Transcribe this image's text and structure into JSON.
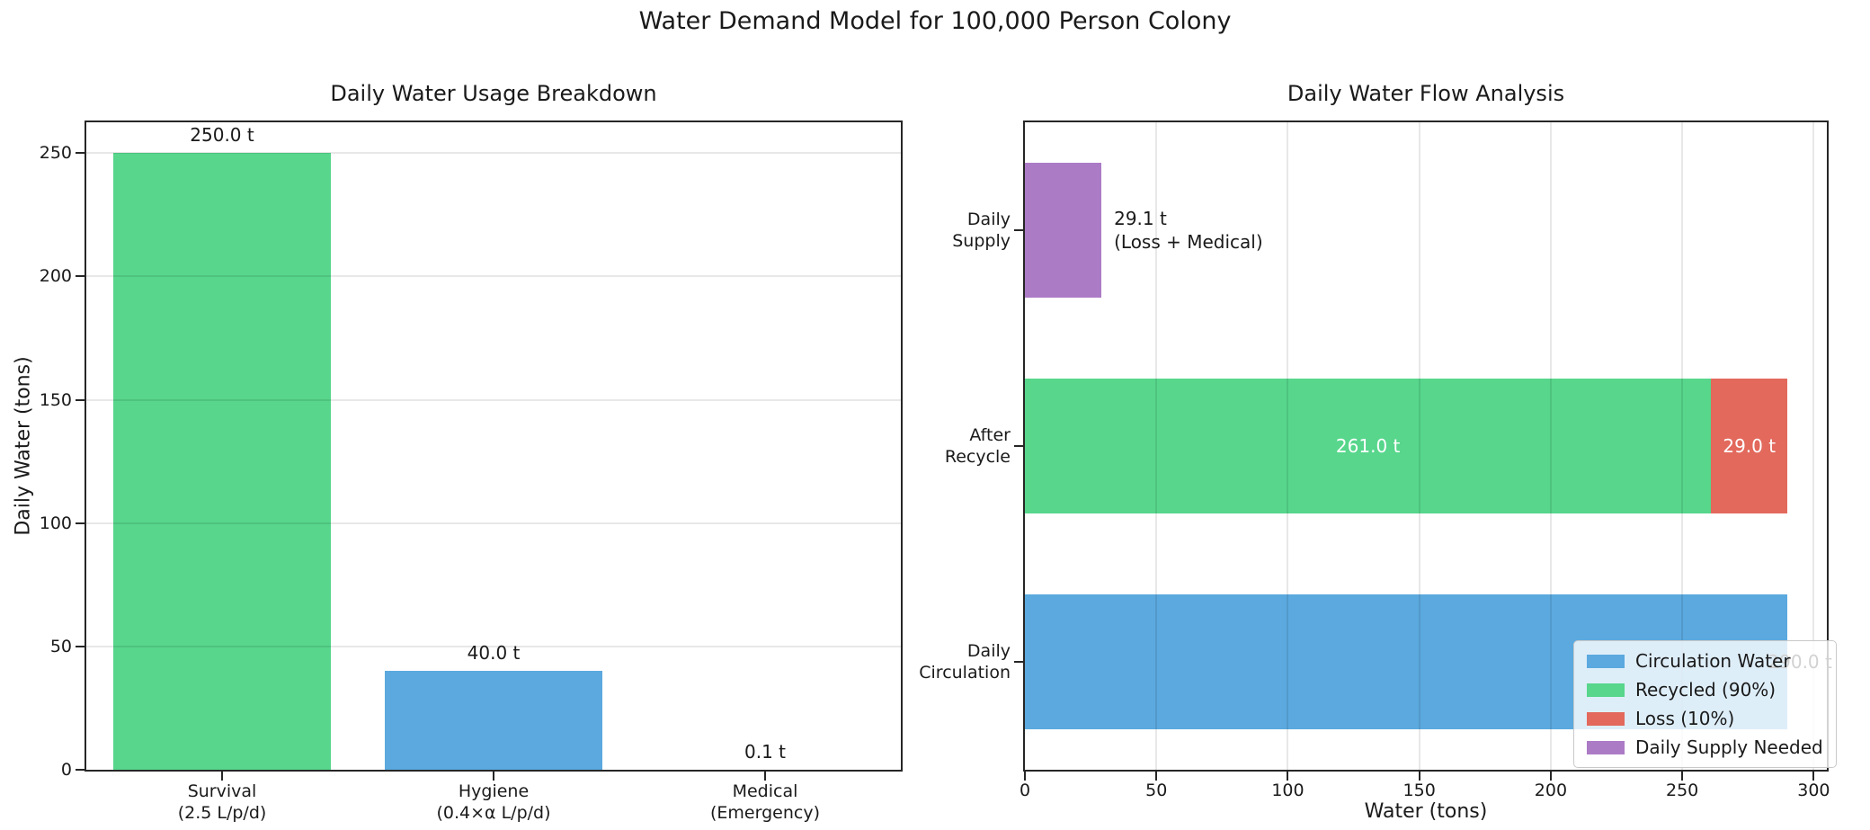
{
  "figure": {
    "suptitle": "Water Demand Model for 100,000 Person Colony"
  },
  "chart_data": [
    {
      "type": "bar",
      "title": "Daily Water Usage Breakdown",
      "ylabel": "Daily Water (tons)",
      "ylim": [
        0,
        262.5
      ],
      "yticks": [
        0,
        50,
        100,
        150,
        200,
        250
      ],
      "ytick_labels": [
        "0",
        "50",
        "100",
        "150",
        "200",
        "250"
      ],
      "grid": "horizontal",
      "categories": [
        [
          "Survival",
          "(2.5 L/p/d)"
        ],
        [
          "Hygiene",
          "(0.4×α L/p/d)"
        ],
        [
          "Medical",
          "(Emergency)"
        ]
      ],
      "values": [
        250.0,
        40.0,
        0.1
      ],
      "bar_labels": [
        "250.0 t",
        "40.0 t",
        "0.1 t"
      ],
      "bar_colors": [
        "#57d68c",
        "#5ba9de",
        "#e2695c"
      ]
    },
    {
      "type": "stacked_barh",
      "title": "Daily Water Flow Analysis",
      "xlabel": "Water (tons)",
      "xlim": [
        0,
        305
      ],
      "xticks": [
        0,
        50,
        100,
        150,
        200,
        250,
        300
      ],
      "xtick_labels": [
        "0",
        "50",
        "100",
        "150",
        "200",
        "250",
        "300"
      ],
      "grid": "vertical",
      "rows": [
        {
          "label": [
            "Daily",
            "Supply"
          ],
          "segments": [
            {
              "name": "Daily Supply Needed",
              "value": 29.1,
              "color": "#ac7bc6"
            }
          ],
          "annotation": [
            "29.1 t",
            "(Loss + Medical)"
          ]
        },
        {
          "label": [
            "After",
            "Recycle"
          ],
          "segments": [
            {
              "name": "Recycled (90%)",
              "value": 261.0,
              "color": "#57d68c",
              "label": "261.0 t"
            },
            {
              "name": "Loss (10%)",
              "value": 29.0,
              "color": "#e2695c",
              "label": "29.0 t"
            }
          ]
        },
        {
          "label": [
            "Daily",
            "Circulation"
          ],
          "segments": [
            {
              "name": "Circulation Water",
              "value": 290.0,
              "color": "#5ba9de"
            }
          ],
          "end_label": "290.0 t"
        }
      ],
      "legend": {
        "position": "lower right",
        "items": [
          {
            "label": "Circulation Water",
            "color": "#5ba9de"
          },
          {
            "label": "Recycled (90%)",
            "color": "#57d68c"
          },
          {
            "label": "Loss (10%)",
            "color": "#e2695c"
          },
          {
            "label": "Daily Supply Needed",
            "color": "#ac7bc6"
          }
        ]
      }
    }
  ]
}
